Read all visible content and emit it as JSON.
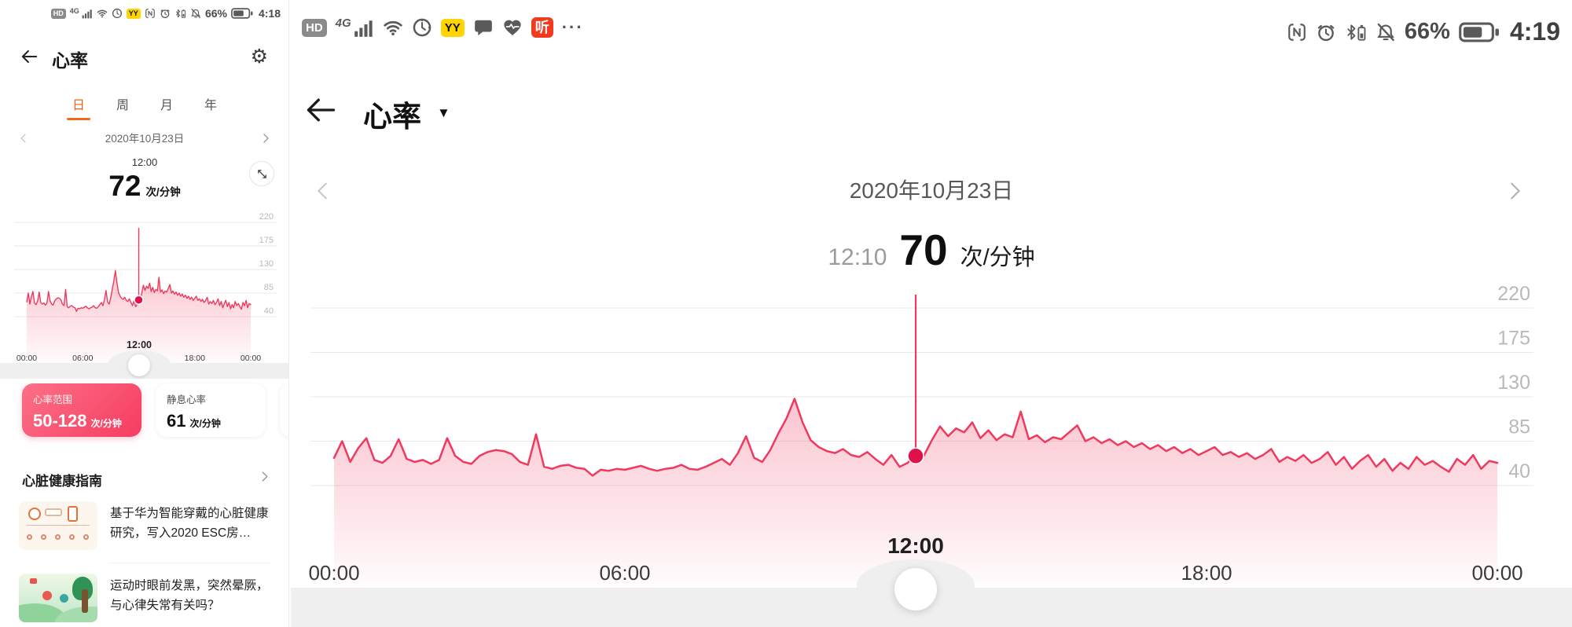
{
  "chart_data": {
    "type": "line",
    "title": "心率 2020年10月23日 (次/分钟)",
    "x_interval_minutes": 10,
    "x_range": [
      "00:00",
      "24:00"
    ],
    "xticks": [
      "00:00",
      "06:00",
      "12:00",
      "18:00",
      "00:00"
    ],
    "yticks": [
      220,
      175,
      130,
      85,
      40
    ],
    "ylim": [
      40,
      220
    ],
    "grid": true,
    "legend": "none",
    "line_color": "#f0395e",
    "dot_color": "#e0124b",
    "cursor": {
      "x_label": "12:00",
      "mini_time": "12:00",
      "mini_value": 72,
      "main_time": "12:10",
      "main_value": 70
    },
    "day_range": "50-128",
    "resting_rate": 61,
    "values": [
      68,
      85,
      64,
      78,
      88,
      66,
      63,
      70,
      87,
      67,
      64,
      66,
      62,
      66,
      88,
      70,
      64,
      62,
      70,
      74,
      76,
      75,
      72,
      64,
      61,
      92,
      59,
      57,
      60,
      61,
      58,
      57,
      50,
      56,
      55,
      57,
      56,
      58,
      60,
      57,
      55,
      57,
      58,
      61,
      57,
      56,
      59,
      63,
      67,
      61,
      73,
      90,
      68,
      64,
      76,
      93,
      108,
      128,
      104,
      86,
      79,
      75,
      73,
      77,
      71,
      69,
      74,
      67,
      61,
      71,
      59,
      63,
      72,
      70,
      86,
      100,
      90,
      98,
      94,
      104,
      88,
      96,
      86,
      92,
      89,
      115,
      87,
      91,
      84,
      89,
      87,
      94,
      101,
      85,
      89,
      83,
      87,
      81,
      85,
      79,
      83,
      77,
      81,
      75,
      79,
      73,
      77,
      71,
      75,
      79,
      71,
      74,
      69,
      73,
      67,
      71,
      77,
      64,
      69,
      65,
      71,
      63,
      67,
      74,
      61,
      69,
      57,
      65,
      71,
      59,
      67,
      55,
      63,
      57,
      69,
      61,
      65,
      59,
      54,
      67,
      61,
      71,
      57,
      65,
      63
    ]
  },
  "left_panel": {
    "status_bar": {
      "icons": [
        {
          "name": "hd-badge",
          "text": "HD"
        },
        {
          "name": "signal-4g-icon",
          "text": "4G"
        },
        {
          "name": "wifi-icon"
        },
        {
          "name": "timer-icon"
        },
        {
          "name": "yy-badge",
          "text": "YY"
        },
        {
          "name": "nfc-icon"
        },
        {
          "name": "alarm-icon"
        },
        {
          "name": "bluetooth-battery-icon"
        },
        {
          "name": "bell-muted-icon"
        },
        {
          "name": "battery-percent",
          "text": "66%"
        },
        {
          "name": "battery-icon"
        },
        {
          "name": "status-time",
          "text": "4:18"
        }
      ]
    },
    "header": {
      "title": "心率"
    },
    "tabs": [
      {
        "label": "日",
        "selected": true
      },
      {
        "label": "周",
        "selected": false
      },
      {
        "label": "月",
        "selected": false
      },
      {
        "label": "年",
        "selected": false
      }
    ],
    "date_nav": {
      "date": "2020年10月23日"
    },
    "reading": {
      "time": "12:00",
      "value": "72",
      "unit": "次/分钟"
    },
    "cards": [
      {
        "title": "心率范围",
        "value": "50-128",
        "unit": "次/分钟"
      },
      {
        "title": "静息心率",
        "value": "61",
        "unit": "次/分钟"
      }
    ],
    "guide": {
      "title": "心脏健康指南",
      "articles": [
        {
          "text": "基于华为智能穿戴的心脏健康研究，写入2020 ESC房…"
        },
        {
          "text": "运动时眼前发黑，突然晕厥，与心律失常有关吗？"
        }
      ]
    }
  },
  "main_panel": {
    "status_bar": {
      "icons_left": [
        {
          "name": "hd-badge",
          "text": "HD"
        },
        {
          "name": "signal-4g-icon",
          "text": "4G"
        },
        {
          "name": "wifi-icon"
        },
        {
          "name": "timer-icon"
        },
        {
          "name": "yy-badge",
          "text": "YY"
        },
        {
          "name": "chat-bubble-icon"
        },
        {
          "name": "heart-pulse-icon"
        },
        {
          "name": "listen-badge",
          "text": "听"
        },
        {
          "name": "more-dots-icon",
          "text": "···"
        }
      ],
      "icons_right": [
        {
          "name": "nfc-icon"
        },
        {
          "name": "alarm-icon"
        },
        {
          "name": "bluetooth-battery-icon"
        },
        {
          "name": "bell-muted-icon"
        },
        {
          "name": "battery-percent",
          "text": "66%"
        },
        {
          "name": "battery-icon"
        },
        {
          "name": "status-time",
          "text": "4:19"
        }
      ]
    },
    "header": {
      "title": "心率",
      "dropdown": "▼"
    },
    "date_nav": {
      "date": "2020年10月23日"
    },
    "reading": {
      "time": "12:10",
      "value": "70",
      "unit": "次/分钟"
    }
  }
}
